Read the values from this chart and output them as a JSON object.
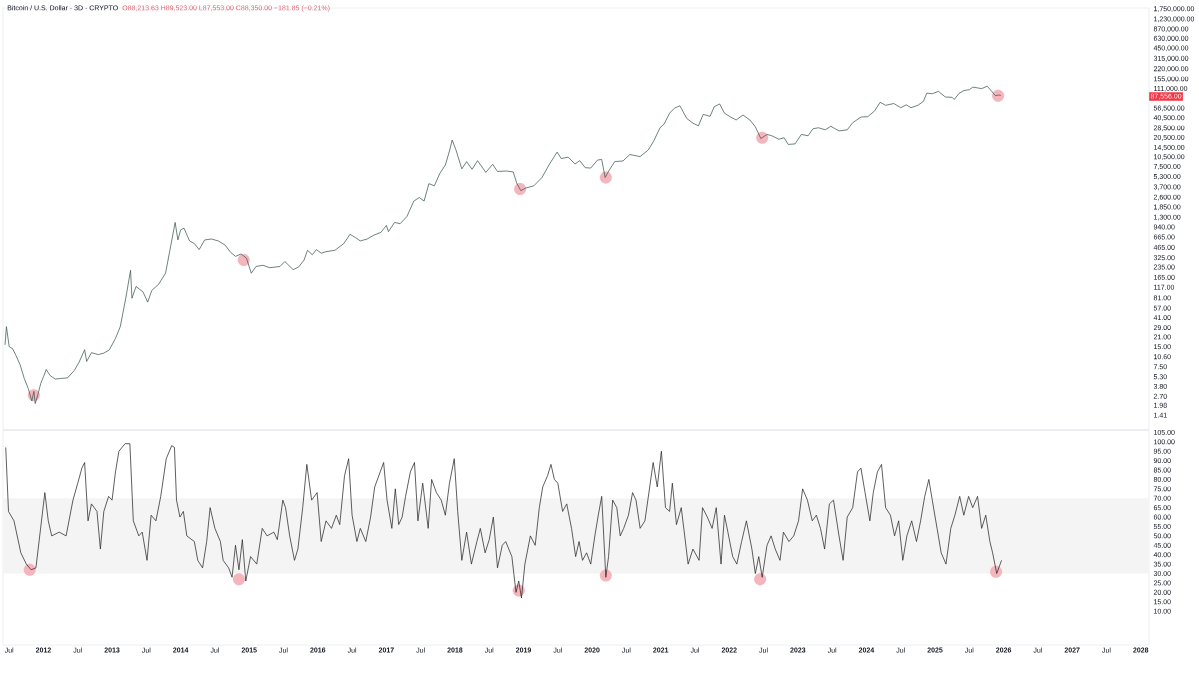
{
  "chart_data": [
    {
      "type": "line",
      "title": "Bitcoin / U.S. Dollar · 3D · CRYPTO",
      "subtitle": "O88,213.63 H89,523.00 L87,553.00 C88,350.00 −181.85 (−0.21%)",
      "log": "y",
      "tick_labels": "y",
      "xlim": [
        2011.41,
        2028.12
      ],
      "ylim": [
        0.856,
        1820000
      ],
      "yticks": [
        {
          "value": 1.41,
          "label": "1.41"
        },
        {
          "value": 1.98,
          "label": "1.98"
        },
        {
          "value": 2.7,
          "label": "2.70"
        },
        {
          "value": 3.8,
          "label": "3.80"
        },
        {
          "value": 5.3,
          "label": "5.30"
        },
        {
          "value": 7.5,
          "label": "7.50"
        },
        {
          "value": 10.6,
          "label": "10.60"
        },
        {
          "value": 15,
          "label": "15.00"
        },
        {
          "value": 21,
          "label": "21.00"
        },
        {
          "value": 29,
          "label": "29.00"
        },
        {
          "value": 41,
          "label": "41.00"
        },
        {
          "value": 57,
          "label": "57.00"
        },
        {
          "value": 81,
          "label": "81.00"
        },
        {
          "value": 117,
          "label": "117.00"
        },
        {
          "value": 165,
          "label": "165.00"
        },
        {
          "value": 235,
          "label": "235.00"
        },
        {
          "value": 325,
          "label": "325.00"
        },
        {
          "value": 465,
          "label": "465.00"
        },
        {
          "value": 665,
          "label": "665.00"
        },
        {
          "value": 940,
          "label": "940.00"
        },
        {
          "value": 1300,
          "label": "1,300.00"
        },
        {
          "value": 1850,
          "label": "1,850.00"
        },
        {
          "value": 2600,
          "label": "2,600.00"
        },
        {
          "value": 3700,
          "label": "3,700.00"
        },
        {
          "value": 5300,
          "label": "5,300.00"
        },
        {
          "value": 7500,
          "label": "7,500.00"
        },
        {
          "value": 10500,
          "label": "10,500.00"
        },
        {
          "value": 14500,
          "label": "14,500.00"
        },
        {
          "value": 20500,
          "label": "20,500.00"
        },
        {
          "value": 28500,
          "label": "28,500.00"
        },
        {
          "value": 40500,
          "label": "40,500.00"
        },
        {
          "value": 56500,
          "label": "56,500.00"
        },
        {
          "value": 111000,
          "label": "111,000.00"
        },
        {
          "value": 155000,
          "label": "155,000.00"
        },
        {
          "value": 220000,
          "label": "220,000.00"
        },
        {
          "value": 315000,
          "label": "315,000.00"
        },
        {
          "value": 450000,
          "label": "450,000.00"
        },
        {
          "value": 630000,
          "label": "630,000.00"
        },
        {
          "value": 870000,
          "label": "870,000.00"
        },
        {
          "value": 1230000,
          "label": "1,230,000.00"
        },
        {
          "value": 1750000,
          "label": "1,750,000.00"
        }
      ],
      "annotations": [
        "87,556.00"
      ],
      "series": [
        {
          "type": "scatter",
          "marker": "circle",
          "color": "#f5b5bd",
          "x": [
            2011.86,
            2014.92,
            2018.95,
            2020.2,
            2022.48,
            2025.92
          ],
          "values": [
            2.8,
            300,
            3500,
            5200,
            20500,
            88000
          ]
        },
        {
          "color": "#3d5a53",
          "x": [
            2011.44,
            2011.46,
            2011.5,
            2011.55,
            2011.6,
            2011.66,
            2011.72,
            2011.78,
            2011.83,
            2011.86,
            2011.88,
            2011.92,
            2011.96,
            2012.0,
            2012.04,
            2012.1,
            2012.17,
            2012.25,
            2012.35,
            2012.45,
            2012.52,
            2012.6,
            2012.63,
            2012.7,
            2012.8,
            2012.88,
            2012.96,
            2013.05,
            2013.12,
            2013.2,
            2013.27,
            2013.29,
            2013.35,
            2013.45,
            2013.52,
            2013.58,
            2013.68,
            2013.78,
            2013.84,
            2013.92,
            2013.96,
            2014.0,
            2014.05,
            2014.13,
            2014.2,
            2014.27,
            2014.35,
            2014.45,
            2014.55,
            2014.65,
            2014.73,
            2014.8,
            2014.88,
            2014.96,
            2015.03,
            2015.1,
            2015.2,
            2015.3,
            2015.45,
            2015.52,
            2015.64,
            2015.72,
            2015.8,
            2015.85,
            2015.92,
            2015.98,
            2016.05,
            2016.12,
            2016.25,
            2016.38,
            2016.47,
            2016.55,
            2016.62,
            2016.72,
            2016.82,
            2016.92,
            2017.0,
            2017.03,
            2017.12,
            2017.2,
            2017.3,
            2017.4,
            2017.48,
            2017.55,
            2017.62,
            2017.7,
            2017.78,
            2017.86,
            2017.92,
            2017.96,
            2018.02,
            2018.1,
            2018.17,
            2018.25,
            2018.33,
            2018.45,
            2018.55,
            2018.62,
            2018.75,
            2018.85,
            2018.9,
            2018.96,
            2019.03,
            2019.15,
            2019.27,
            2019.38,
            2019.49,
            2019.55,
            2019.65,
            2019.75,
            2019.82,
            2019.9,
            2019.98,
            2020.08,
            2020.14,
            2020.19,
            2020.25,
            2020.33,
            2020.45,
            2020.55,
            2020.7,
            2020.82,
            2020.9,
            2020.99,
            2021.05,
            2021.13,
            2021.2,
            2021.28,
            2021.38,
            2021.47,
            2021.55,
            2021.62,
            2021.72,
            2021.78,
            2021.86,
            2021.93,
            2022.02,
            2022.1,
            2022.2,
            2022.3,
            2022.38,
            2022.46,
            2022.55,
            2022.62,
            2022.72,
            2022.8,
            2022.86,
            2022.96,
            2023.05,
            2023.15,
            2023.22,
            2023.3,
            2023.4,
            2023.48,
            2023.6,
            2023.72,
            2023.8,
            2023.92,
            2024.02,
            2024.12,
            2024.2,
            2024.28,
            2024.4,
            2024.5,
            2024.58,
            2024.65,
            2024.75,
            2024.83,
            2024.88,
            2024.96,
            2025.05,
            2025.15,
            2025.25,
            2025.28,
            2025.35,
            2025.42,
            2025.5,
            2025.55,
            2025.62,
            2025.68,
            2025.76,
            2025.8,
            2025.88,
            2025.93,
            2025.96
          ],
          "values": [
            16,
            30,
            15,
            14,
            11,
            8,
            5,
            3.5,
            2.3,
            3.2,
            2.1,
            2.9,
            4.2,
            5.3,
            6.8,
            5.5,
            4.9,
            5.0,
            5.1,
            6.6,
            8.8,
            13.5,
            9,
            12.2,
            11.4,
            12,
            13.4,
            20,
            30,
            80,
            210,
            80,
            120,
            100,
            70,
            105,
            130,
            190,
            400,
            1100,
            600,
            850,
            900,
            580,
            530,
            430,
            600,
            620,
            580,
            500,
            390,
            340,
            370,
            320,
            190,
            240,
            250,
            230,
            240,
            285,
            215,
            235,
            300,
            420,
            360,
            430,
            380,
            400,
            420,
            530,
            730,
            650,
            580,
            620,
            710,
            780,
            990,
            800,
            1100,
            1050,
            1350,
            2300,
            2600,
            2300,
            4200,
            3900,
            6000,
            8000,
            13000,
            19000,
            13000,
            7000,
            9000,
            6900,
            9300,
            6200,
            8200,
            6400,
            6500,
            6300,
            4300,
            3300,
            3600,
            3900,
            5200,
            8300,
            12500,
            10000,
            10500,
            8300,
            9300,
            7300,
            7200,
            9500,
            9700,
            5200,
            6700,
            9000,
            9200,
            11500,
            10700,
            13500,
            18500,
            29000,
            33000,
            48000,
            57000,
            62000,
            40000,
            34000,
            31000,
            46000,
            43000,
            60000,
            66000,
            48000,
            42000,
            38000,
            45000,
            38000,
            30000,
            20000,
            23000,
            22000,
            19500,
            20500,
            16300,
            16600,
            23000,
            22000,
            28000,
            29000,
            27000,
            30500,
            26000,
            27000,
            34500,
            42000,
            42500,
            52000,
            70000,
            63000,
            67000,
            58000,
            64000,
            58000,
            63000,
            72000,
            96000,
            94000,
            102000,
            84000,
            83000,
            77000,
            95000,
            105000,
            108000,
            118000,
            115000,
            112000,
            122000,
            110000,
            88000,
            90000,
            88500
          ]
        }
      ]
    },
    {
      "type": "line",
      "xlim": [
        2011.41,
        2028.12
      ],
      "xticks": [
        {
          "value": 2011.5,
          "label": "Jul"
        },
        2012,
        {
          "value": 2012.5,
          "label": "Jul"
        },
        2013,
        {
          "value": 2013.5,
          "label": "Jul"
        },
        2014,
        {
          "value": 2014.5,
          "label": "Jul"
        },
        2015,
        {
          "value": 2015.5,
          "label": "Jul"
        },
        2016,
        {
          "value": 2016.5,
          "label": "Jul"
        },
        2017,
        {
          "value": 2017.5,
          "label": "Jul"
        },
        2018,
        {
          "value": 2018.5,
          "label": "Jul"
        },
        2019,
        {
          "value": 2019.5,
          "label": "Jul"
        },
        2020,
        {
          "value": 2020.5,
          "label": "Jul"
        },
        2021,
        {
          "value": 2021.5,
          "label": "Jul"
        },
        2022,
        {
          "value": 2022.5,
          "label": "Jul"
        },
        2023,
        {
          "value": 2023.5,
          "label": "Jul"
        },
        2024,
        {
          "value": 2024.5,
          "label": "Jul"
        },
        2025,
        {
          "value": 2025.5,
          "label": "Jul"
        },
        2026,
        {
          "value": 2026.5,
          "label": "Jul"
        },
        2027,
        {
          "value": 2027.5,
          "label": "Jul"
        },
        2028
      ],
      "ylim": [
        -8,
        106
      ],
      "yticks": [
        {
          "value": 10,
          "label": "10.00"
        },
        {
          "value": 15,
          "label": "15.00"
        },
        {
          "value": 20,
          "label": "20.00"
        },
        {
          "value": 25,
          "label": "25.00"
        },
        {
          "value": 30,
          "label": "30.00"
        },
        {
          "value": 35,
          "label": "35.00"
        },
        {
          "value": 40,
          "label": "40.00"
        },
        {
          "value": 45,
          "label": "45.00"
        },
        {
          "value": 50,
          "label": "50.00"
        },
        {
          "value": 55,
          "label": "55.00"
        },
        {
          "value": 60,
          "label": "60.00"
        },
        {
          "value": 65,
          "label": "65.00"
        },
        {
          "value": 70,
          "label": "70.00"
        },
        {
          "value": 75,
          "label": "75.00"
        },
        {
          "value": 80,
          "label": "80.00"
        },
        {
          "value": 85,
          "label": "85.00"
        },
        {
          "value": 90,
          "label": "90.00"
        },
        {
          "value": 95,
          "label": "95.00"
        },
        {
          "value": 100,
          "label": "100.00"
        },
        {
          "value": 105,
          "label": "105.00"
        }
      ],
      "bands": [
        {
          "axis": "y",
          "from": 30,
          "to": 70,
          "color": "#f4f4f4"
        }
      ],
      "series": [
        {
          "type": "scatter",
          "marker": "circle",
          "color": "#f5b5bd",
          "x": [
            2011.8,
            2014.85,
            2018.93,
            2020.2,
            2022.45,
            2025.89
          ],
          "values": [
            32,
            27,
            21,
            29,
            27,
            31
          ]
        },
        {
          "color": "#2a2a2a",
          "x": [
            2011.45,
            2011.49,
            2011.57,
            2011.67,
            2011.75,
            2011.82,
            2011.89,
            2012.02,
            2012.07,
            2012.12,
            2012.23,
            2012.33,
            2012.43,
            2012.5,
            2012.56,
            2012.6,
            2012.65,
            2012.7,
            2012.78,
            2012.83,
            2012.88,
            2012.95,
            2013.0,
            2013.05,
            2013.1,
            2013.19,
            2013.26,
            2013.31,
            2013.39,
            2013.44,
            2013.51,
            2013.57,
            2013.64,
            2013.71,
            2013.79,
            2013.87,
            2013.91,
            2013.94,
            2013.99,
            2014.04,
            2014.09,
            2014.2,
            2014.25,
            2014.32,
            2014.38,
            2014.43,
            2014.5,
            2014.58,
            2014.62,
            2014.7,
            2014.75,
            2014.8,
            2014.85,
            2014.9,
            2014.95,
            2015.02,
            2015.11,
            2015.19,
            2015.26,
            2015.36,
            2015.41,
            2015.49,
            2015.53,
            2015.59,
            2015.66,
            2015.71,
            2015.78,
            2015.84,
            2015.91,
            2015.99,
            2016.05,
            2016.12,
            2016.2,
            2016.27,
            2016.32,
            2016.39,
            2016.45,
            2016.5,
            2016.57,
            2016.62,
            2016.7,
            2016.77,
            2016.83,
            2016.91,
            2016.96,
            2017.01,
            2017.08,
            2017.13,
            2017.18,
            2017.23,
            2017.28,
            2017.35,
            2017.41,
            2017.46,
            2017.53,
            2017.61,
            2017.66,
            2017.73,
            2017.8,
            2017.86,
            2017.92,
            2017.99,
            2018.04,
            2018.1,
            2018.17,
            2018.24,
            2018.32,
            2018.37,
            2018.44,
            2018.5,
            2018.56,
            2018.62,
            2018.69,
            2018.74,
            2018.83,
            2018.89,
            2018.93,
            2018.97,
            2019.02,
            2019.1,
            2019.17,
            2019.23,
            2019.28,
            2019.35,
            2019.4,
            2019.45,
            2019.5,
            2019.57,
            2019.63,
            2019.7,
            2019.76,
            2019.81,
            2019.86,
            2019.92,
            2019.98,
            2020.04,
            2020.09,
            2020.14,
            2020.2,
            2020.24,
            2020.3,
            2020.36,
            2020.41,
            2020.46,
            2020.53,
            2020.59,
            2020.64,
            2020.7,
            2020.77,
            2020.84,
            2020.89,
            2020.95,
            2021.01,
            2021.07,
            2021.13,
            2021.17,
            2021.23,
            2021.3,
            2021.35,
            2021.4,
            2021.47,
            2021.56,
            2021.61,
            2021.68,
            2021.75,
            2021.81,
            2021.88,
            2021.93,
            2021.98,
            2022.05,
            2022.11,
            2022.18,
            2022.25,
            2022.33,
            2022.38,
            2022.43,
            2022.48,
            2022.55,
            2022.61,
            2022.67,
            2022.74,
            2022.79,
            2022.87,
            2022.94,
            2023.01,
            2023.07,
            2023.14,
            2023.21,
            2023.27,
            2023.33,
            2023.39,
            2023.46,
            2023.52,
            2023.6,
            2023.66,
            2023.72,
            2023.8,
            2023.87,
            2023.92,
            2023.98,
            2024.05,
            2024.1,
            2024.16,
            2024.22,
            2024.28,
            2024.35,
            2024.41,
            2024.47,
            2024.53,
            2024.59,
            2024.66,
            2024.73,
            2024.79,
            2024.85,
            2024.91,
            2024.96,
            2025.03,
            2025.09,
            2025.16,
            2025.23,
            2025.29,
            2025.36,
            2025.42,
            2025.49,
            2025.55,
            2025.62,
            2025.68,
            2025.74,
            2025.8,
            2025.84,
            2025.9,
            2025.95,
            2025.97
          ],
          "values": [
            97,
            63,
            58,
            41,
            35,
            32,
            33,
            73,
            58,
            50,
            52,
            50,
            69,
            78,
            86,
            89,
            58,
            67,
            63,
            43,
            63,
            71,
            69,
            84,
            95,
            99,
            99,
            58,
            50,
            52,
            37,
            61,
            58,
            71,
            91,
            98,
            97,
            69,
            60,
            63,
            50,
            47,
            37,
            33,
            47,
            65,
            54,
            47,
            37,
            33,
            28,
            45,
            32,
            48,
            26,
            39,
            35,
            54,
            50,
            52,
            48,
            69,
            65,
            50,
            37,
            43,
            65,
            88,
            69,
            73,
            47,
            58,
            54,
            61,
            56,
            82,
            91,
            61,
            47,
            54,
            47,
            60,
            76,
            84,
            89,
            69,
            54,
            75,
            56,
            60,
            71,
            84,
            89,
            58,
            78,
            54,
            80,
            73,
            69,
            61,
            78,
            91,
            63,
            37,
            52,
            35,
            47,
            54,
            41,
            48,
            60,
            33,
            45,
            47,
            39,
            20,
            26,
            17,
            35,
            50,
            45,
            65,
            76,
            82,
            88,
            80,
            78,
            63,
            67,
            54,
            39,
            47,
            37,
            41,
            35,
            50,
            61,
            71,
            28,
            39,
            69,
            65,
            50,
            54,
            61,
            73,
            69,
            54,
            58,
            76,
            89,
            76,
            95,
            65,
            63,
            78,
            56,
            65,
            50,
            35,
            43,
            37,
            65,
            60,
            54,
            65,
            35,
            61,
            52,
            39,
            35,
            47,
            58,
            43,
            30,
            39,
            28,
            45,
            50,
            43,
            37,
            52,
            47,
            50,
            58,
            75,
            69,
            58,
            61,
            54,
            43,
            67,
            69,
            50,
            37,
            60,
            65,
            84,
            86,
            73,
            58,
            73,
            84,
            88,
            65,
            61,
            50,
            58,
            37,
            50,
            58,
            47,
            58,
            71,
            80,
            69,
            54,
            41,
            35,
            54,
            61,
            71,
            61,
            71,
            65,
            71,
            54,
            61,
            47,
            41,
            30,
            35,
            37
          ]
        }
      ]
    }
  ]
}
